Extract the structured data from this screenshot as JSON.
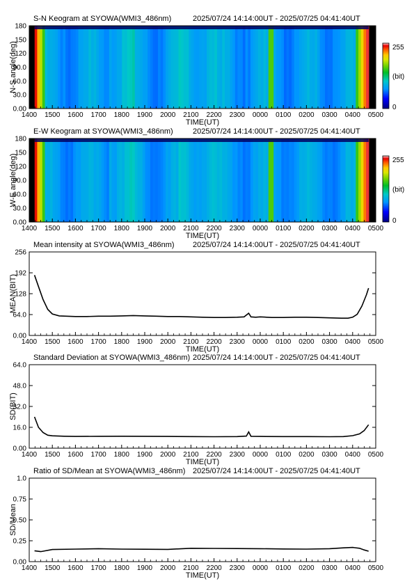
{
  "time_range_text": "2025/07/24 14:14:00UT - 2025/07/25 04:41:40UT",
  "x_ticks": [
    "1400",
    "1500",
    "1600",
    "1700",
    "1800",
    "1900",
    "2000",
    "2100",
    "2200",
    "2300",
    "0000",
    "0100",
    "0200",
    "0300",
    "0400",
    "0500"
  ],
  "x_label": "TIME(UT)",
  "colorbar": {
    "max_label": "255",
    "unit_label": "(bit)",
    "min_label": "0"
  },
  "chart_data": [
    {
      "type": "heatmap",
      "title": "S-N Keogram at SYOWA(WMI3_486nm)",
      "xlabel": "TIME(UT)",
      "ylabel": "N-S angle(deg)",
      "yticks": [
        "0.00",
        "30.0",
        "60.0",
        "90.0",
        "120",
        "150",
        "180"
      ],
      "ylim": [
        0,
        180
      ],
      "xlim_hours": [
        14.0,
        29.0
      ],
      "data_span_hours": [
        14.233,
        28.694
      ],
      "colormap": [
        "#000080",
        "#0000ff",
        "#00a0ff",
        "#00c8c8",
        "#00c000",
        "#60d000",
        "#c8e000",
        "#ffff00",
        "#ff8000",
        "#ff0000",
        "#ffc0c0",
        "#ffffff"
      ],
      "value_range": [
        0,
        255
      ],
      "grid": false
    },
    {
      "type": "heatmap",
      "title": "E-W Keogram at SYOWA(WMI3_486nm)",
      "xlabel": "TIME(UT)",
      "ylabel": "W-E angle(deg)",
      "yticks": [
        "0.00",
        "30.0",
        "60.0",
        "90.0",
        "120",
        "150",
        "180"
      ],
      "ylim": [
        0,
        180
      ],
      "xlim_hours": [
        14.0,
        29.0
      ],
      "data_span_hours": [
        14.233,
        28.694
      ],
      "value_range": [
        0,
        255
      ],
      "grid": false
    },
    {
      "type": "line",
      "title": "Mean intensity at SYOWA(WMI3_486nm)",
      "xlabel": "TIME(UT)",
      "ylabel": "MEAN(BIT)",
      "yticks": [
        "0.00",
        "64.0",
        "128",
        "192",
        "256"
      ],
      "ylim": [
        0,
        256
      ],
      "x": [
        14.23,
        14.4,
        14.6,
        14.8,
        15.0,
        15.3,
        15.6,
        16.0,
        16.5,
        17.0,
        17.5,
        18.0,
        18.5,
        19.0,
        19.5,
        20.0,
        20.5,
        21.0,
        21.5,
        22.0,
        22.5,
        23.0,
        23.3,
        23.5,
        23.6,
        23.8,
        24.0,
        24.5,
        25.0,
        25.5,
        26.0,
        26.5,
        27.0,
        27.5,
        27.8,
        28.0,
        28.2,
        28.4,
        28.6,
        28.69
      ],
      "y": [
        185,
        150,
        110,
        80,
        66,
        60,
        59,
        58,
        58,
        59,
        59,
        60,
        61,
        60,
        59,
        58,
        58,
        57,
        56,
        55,
        55,
        56,
        57,
        68,
        57,
        56,
        57,
        55,
        55,
        56,
        56,
        55,
        54,
        53,
        53,
        56,
        65,
        90,
        125,
        145
      ]
    },
    {
      "type": "line",
      "title": "Standard Deviation at SYOWA(WMI3_486nm)",
      "xlabel": "TIME(UT)",
      "ylabel": "SD(BIT)",
      "yticks": [
        "0.00",
        "16.0",
        "32.0",
        "48.0",
        "64.0"
      ],
      "ylim": [
        0,
        64
      ],
      "x": [
        14.23,
        14.4,
        14.6,
        14.8,
        15.0,
        15.5,
        16.0,
        17.0,
        18.0,
        19.0,
        20.0,
        21.0,
        22.0,
        23.0,
        23.4,
        23.5,
        23.6,
        24.0,
        25.0,
        26.0,
        27.0,
        27.6,
        28.0,
        28.3,
        28.5,
        28.69
      ],
      "y": [
        24,
        16,
        12,
        10,
        9.5,
        9.2,
        9.0,
        9.1,
        9.2,
        9.1,
        9.0,
        8.9,
        8.8,
        8.9,
        9.3,
        12.5,
        9.1,
        9.0,
        8.9,
        8.9,
        8.8,
        8.9,
        9.6,
        11.0,
        13.5,
        18.0
      ]
    },
    {
      "type": "line",
      "title": "Ratio of SD/Mean at SYOWA(WMI3_486nm)",
      "xlabel": "TIME(UT)",
      "ylabel": "SD/Mean",
      "yticks": [
        "0.00",
        "0.25",
        "0.50",
        "0.75",
        "1.0"
      ],
      "ylim": [
        0,
        1
      ],
      "x": [
        14.23,
        14.5,
        15.0,
        16.0,
        17.0,
        18.0,
        19.0,
        20.0,
        21.0,
        22.0,
        23.0,
        24.0,
        25.0,
        26.0,
        27.0,
        27.6,
        28.0,
        28.3,
        28.5,
        28.69
      ],
      "y": [
        0.13,
        0.12,
        0.145,
        0.15,
        0.155,
        0.15,
        0.148,
        0.147,
        0.16,
        0.158,
        0.157,
        0.155,
        0.152,
        0.15,
        0.155,
        0.165,
        0.17,
        0.16,
        0.14,
        0.125
      ]
    }
  ]
}
